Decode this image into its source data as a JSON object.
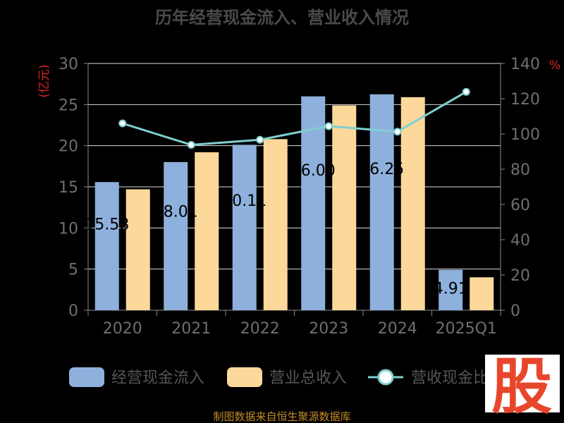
{
  "chart_data": {
    "type": "bar",
    "title": "历年经营现金流入、营业收入情况",
    "y_left_unit": "(亿元)",
    "y_right_unit": "%",
    "categories": [
      "2020",
      "2021",
      "2022",
      "2023",
      "2024",
      "2025Q1"
    ],
    "ylim_left": [
      0,
      30
    ],
    "ylim_right": [
      0,
      140
    ],
    "yticks_left": [
      "0",
      "5",
      "10",
      "15",
      "20",
      "25",
      "30"
    ],
    "yticks_right": [
      "0",
      "20",
      "40",
      "60",
      "80",
      "100",
      "120",
      "140"
    ],
    "grid": true,
    "legend_position": "bottom",
    "series": [
      {
        "name": "经营现金流入",
        "axis": "left",
        "kind": "bar",
        "color": "#8eb0dc",
        "values": [
          15.58,
          18.01,
          20.11,
          26.0,
          26.25,
          4.91
        ],
        "labels": [
          "15.58",
          "18.01",
          "20.11",
          "26.00",
          "26.25",
          "4.91"
        ]
      },
      {
        "name": "营业总收入",
        "axis": "left",
        "kind": "bar",
        "color": "#fdd89b",
        "values": [
          14.7,
          19.2,
          20.8,
          24.9,
          25.9,
          4.0
        ]
      },
      {
        "name": "营收现金比",
        "axis": "right",
        "kind": "line",
        "color": "#7fcfcf",
        "values": [
          106,
          93.8,
          96.7,
          104.4,
          101.3,
          123.9
        ]
      }
    ]
  },
  "source_text": "制图数据来自恒生聚源数据库",
  "watermark_char": "股",
  "watermark_color": "#e8462a"
}
